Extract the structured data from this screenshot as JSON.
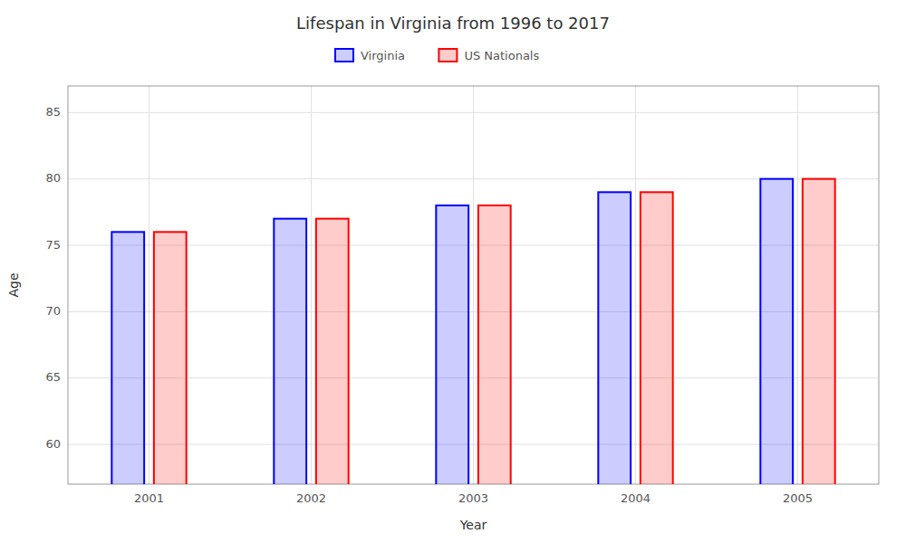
{
  "chart_data": {
    "type": "bar",
    "title": "Lifespan in Virginia from 1996 to 2017",
    "xlabel": "Year",
    "ylabel": "Age",
    "categories": [
      "2001",
      "2002",
      "2003",
      "2004",
      "2005"
    ],
    "series": [
      {
        "name": "Virginia",
        "color": "#0000ff",
        "values": [
          76,
          77,
          78,
          79,
          80
        ]
      },
      {
        "name": "US Nationals",
        "color": "#ff0000",
        "values": [
          76,
          77,
          78,
          79,
          80
        ]
      }
    ],
    "ylim": [
      57,
      87
    ],
    "yticks": [
      60,
      65,
      70,
      75,
      80,
      85
    ],
    "grid": true,
    "legend": "top"
  }
}
